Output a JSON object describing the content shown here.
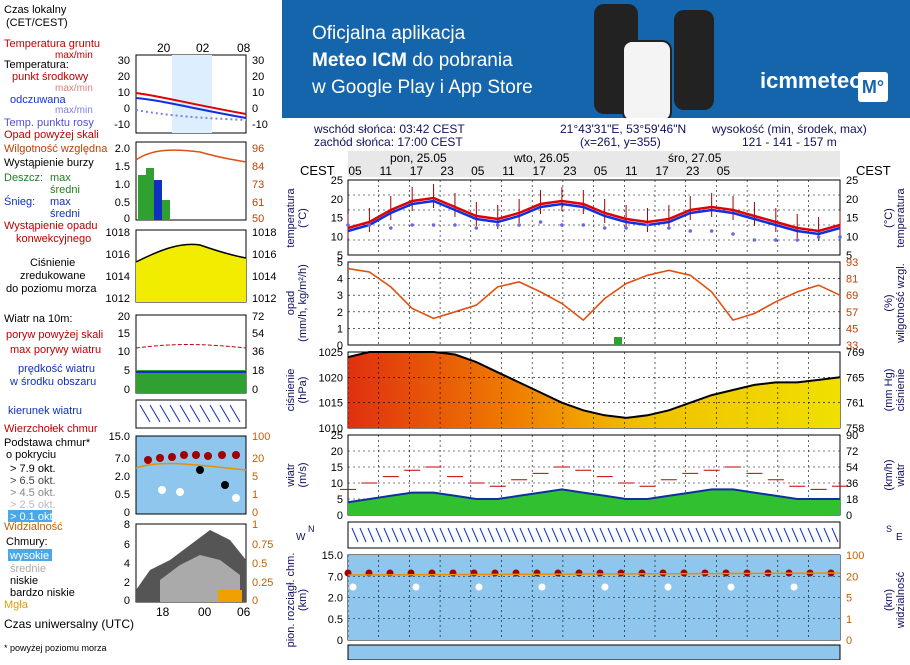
{
  "banner": {
    "line1": "Oficjalna aplikacja",
    "line2_bold": "Meteo ICM",
    "line2_rest": " do pobrania",
    "line3": "w Google Play i App Store",
    "logo": "icmmeteo",
    "badge": "M°"
  },
  "info": {
    "sunrise": "wschód słońca: 03:42 CEST",
    "sunset": "zachód słońca: 17:00 CEST",
    "coords": "21°43'31\"E, 53°59'46\"N",
    "grid": "(x=261,  y=355)",
    "elev_label": "wysokość (min, środek, max)",
    "elev_values": "121 - 141 - 157 m"
  },
  "timeline": {
    "tz_left": "CEST",
    "tz_right": "CEST",
    "days": [
      "pon, 25.05",
      "wto, 26.05",
      "śro, 27.05"
    ],
    "hours": [
      "05",
      "11",
      "17",
      "23",
      "05",
      "11",
      "17",
      "23",
      "05",
      "11",
      "17",
      "23",
      "05"
    ]
  },
  "legend": {
    "time_local": "Czas lokalny",
    "time_local_sub": "(CET/CEST)",
    "top_ticks": [
      "20",
      "02",
      "08"
    ],
    "bottom_ticks": [
      "18",
      "00",
      "06"
    ],
    "ground_temp": "Temperatura gruntu",
    "ground_temp_sub": "max/min",
    "temperature": "Temperatura:",
    "mid_point": "punkt środkowy",
    "max_min": "max/min",
    "felt": "odczuwana",
    "felt_sub": "max/min",
    "dew": "Temp. punktu rosy",
    "temp_ticks_l": [
      "30",
      "20",
      "10",
      "0",
      "-10"
    ],
    "temp_ticks_r": [
      "30",
      "20",
      "10",
      "0",
      "-10"
    ],
    "precip_above": "Opad powyżej skali",
    "humidity": "Wilgotność względna",
    "storm": "Wystąpienie burzy",
    "rain": "Deszcz:",
    "rain_max": "max",
    "rain_mid": "średni",
    "snow": "Śnieg:",
    "snow_max": "max",
    "snow_mid": "średni",
    "precip_occurrence": "Wystąpienie opadu",
    "convective": "konwekcyjnego",
    "precip_ticks_l": [
      "2.0",
      "1.5",
      "1.0",
      "0.5",
      "0"
    ],
    "precip_ticks_r": [
      "96",
      "84",
      "73",
      "61",
      "50"
    ],
    "pressure_ticks_l": [
      "1018",
      "1016",
      "1014",
      "1012"
    ],
    "pressure_ticks_r": [
      "1018",
      "1016",
      "1014",
      "1012"
    ],
    "pressure1": "Ciśnienie",
    "pressure2": "zredukowane",
    "pressure3": "do poziomu morza",
    "wind10": "Wiatr na 10m:",
    "gust_above": "poryw powyżej skali",
    "gust_max": "max porywy wiatru",
    "wind_speed": "prędkość wiatru",
    "wind_area": "w środku obszaru",
    "wind_ticks_l": [
      "20",
      "15",
      "10",
      "5",
      "0"
    ],
    "wind_ticks_r": [
      "72",
      "54",
      "36",
      "18",
      "0"
    ],
    "wind_dir": "kierunek wiatru",
    "cloud_top": "Wierzchołek chmur",
    "cloud_base": "Podstawa chmur*",
    "cloud_cover": "o pokryciu",
    "okt": [
      "> 7.9 okt.",
      "> 6.5 okt.",
      "> 4.5 okt.",
      "> 2.5 okt.",
      "> 0.1 okt."
    ],
    "cloud_ticks_l": [
      "15.0",
      "7.0",
      "2.0",
      "0.5",
      "0"
    ],
    "cloud_ticks_r": [
      "100",
      "20",
      "5",
      "1",
      "0"
    ],
    "visibility": "Widzialność",
    "clouds": "Chmury:",
    "cl_high": "wysokie",
    "cl_mid": "średnie",
    "cl_low": "niskie",
    "cl_vlow": "bardzo niskie",
    "fog": "Mgła",
    "cl_ticks_l": [
      "8",
      "6",
      "4",
      "2",
      "0"
    ],
    "cl_ticks_r": [
      "1",
      "0.75",
      "0.5",
      "0.25",
      "0"
    ],
    "utc": "Czas uniwersalny (UTC)",
    "footnote": "* powyżej poziomu morza"
  },
  "axis_labels": {
    "temp_l": "temperatura",
    "temp_l_unit": "(°C)",
    "temp_r": "temperatura",
    "temp_r_unit": "(°C)",
    "precip_l": "opad",
    "precip_l_unit": "(mm/h, kg/m²/h)",
    "precip_r": "wilgotność wzgl.",
    "precip_r_unit": "(%)",
    "press_l": "ciśnienie",
    "press_l_unit": "(hPa)",
    "press_r": "ciśnienie",
    "press_r_unit": "(mm Hg)",
    "wind_l": "wiatr",
    "wind_l_unit": "(m/s)",
    "wind_r": "wiatr",
    "wind_r_unit": "(km/h)",
    "cloud_l": "pion. rozciągł. chm.",
    "cloud_l_unit": "(km)",
    "cloud_r": "widzialność",
    "cloud_r_unit": "(km)",
    "dir_l": "W",
    "dir_l2": "N",
    "dir_l3": "E",
    "dir_l4": "S"
  },
  "colors": {
    "temp": "#e00000",
    "felt": "#1030e0",
    "dew": "#6a6ae0",
    "humidity": "#e05010",
    "pressure_high": "#e03010",
    "pressure_low": "#f0e000",
    "wind": "#30c030",
    "sky": "#8ec6ee"
  },
  "chart_data": [
    {
      "type": "line",
      "panel": "temperature",
      "ylim": [
        0,
        25
      ],
      "ticks_left": [
        "25",
        "20",
        "15",
        "10",
        "5"
      ],
      "ticks_right": [
        "25",
        "20",
        "15",
        "10",
        "5"
      ],
      "series": [
        {
          "values": [
            9,
            11,
            15,
            18,
            19,
            16,
            13,
            12,
            14,
            17,
            18,
            17,
            14,
            12,
            11,
            12,
            15,
            16,
            15,
            13,
            11,
            9,
            8,
            10
          ]
        },
        {
          "values": [
            8,
            10,
            14,
            17,
            18,
            15,
            12,
            11,
            13,
            16,
            17,
            16,
            13,
            11,
            10,
            11,
            14,
            15,
            14,
            12,
            10,
            8,
            7,
            9
          ]
        },
        {
          "values": [
            10,
            10,
            9,
            10,
            10,
            10,
            9,
            10,
            10,
            11,
            10,
            10,
            9,
            9,
            10,
            9,
            8,
            8,
            7,
            5,
            5,
            5,
            6,
            6
          ]
        }
      ]
    },
    {
      "type": "line",
      "panel": "precipitation",
      "ylim": [
        0,
        5
      ],
      "ticks_left": [
        "5",
        "4",
        "3",
        "2",
        "1",
        "0"
      ],
      "ticks_right": [
        "93",
        "81",
        "69",
        "57",
        "45",
        "33"
      ],
      "series": [
        {
          "values": [
            4.6,
            4.4,
            3.5,
            2.2,
            1.6,
            2.0,
            2.4,
            3.5,
            3.8,
            3.2,
            2.5,
            1.5,
            2.8,
            3.7,
            4.2,
            4.5,
            4.2,
            3.2,
            1.5,
            1.9,
            2.6,
            3.2,
            3.6,
            3.0
          ]
        }
      ]
    },
    {
      "type": "area",
      "panel": "pressure",
      "ylim": [
        1010,
        1025
      ],
      "ticks_left": [
        "1025",
        "1020",
        "1015",
        "1010"
      ],
      "ticks_right": [
        "769",
        "765",
        "761",
        "758"
      ],
      "series": [
        {
          "values": [
            1024,
            1025,
            1025,
            1025,
            1025,
            1024.5,
            1023,
            1021,
            1019,
            1017,
            1015,
            1013.5,
            1012.5,
            1012,
            1012.5,
            1013.5,
            1015,
            1016.5,
            1017.5,
            1018.5,
            1019,
            1019,
            1019.5,
            1020
          ]
        }
      ]
    },
    {
      "type": "area",
      "panel": "wind",
      "ylim": [
        0,
        25
      ],
      "ticks_left": [
        "25",
        "20",
        "15",
        "10",
        "5",
        "0"
      ],
      "ticks_right": [
        "90",
        "72",
        "54",
        "36",
        "18",
        "0"
      ],
      "series": [
        {
          "values": [
            4,
            5,
            6,
            7,
            7,
            6,
            5,
            5,
            6,
            7,
            8,
            7,
            6,
            5,
            5,
            6,
            7,
            8,
            8,
            7,
            6,
            5,
            5,
            5
          ]
        },
        {
          "values": [
            8,
            10,
            12,
            14,
            15,
            12,
            10,
            9,
            11,
            13,
            15,
            14,
            12,
            10,
            9,
            11,
            13,
            14,
            15,
            13,
            11,
            9,
            8,
            9
          ]
        }
      ]
    },
    {
      "type": "scatter",
      "panel": "clouds",
      "ticks_left": [
        "15.0",
        "7.0",
        "2.0",
        "0.5",
        "0"
      ],
      "ticks_right": [
        "100",
        "20",
        "5",
        "1",
        "0"
      ]
    }
  ]
}
